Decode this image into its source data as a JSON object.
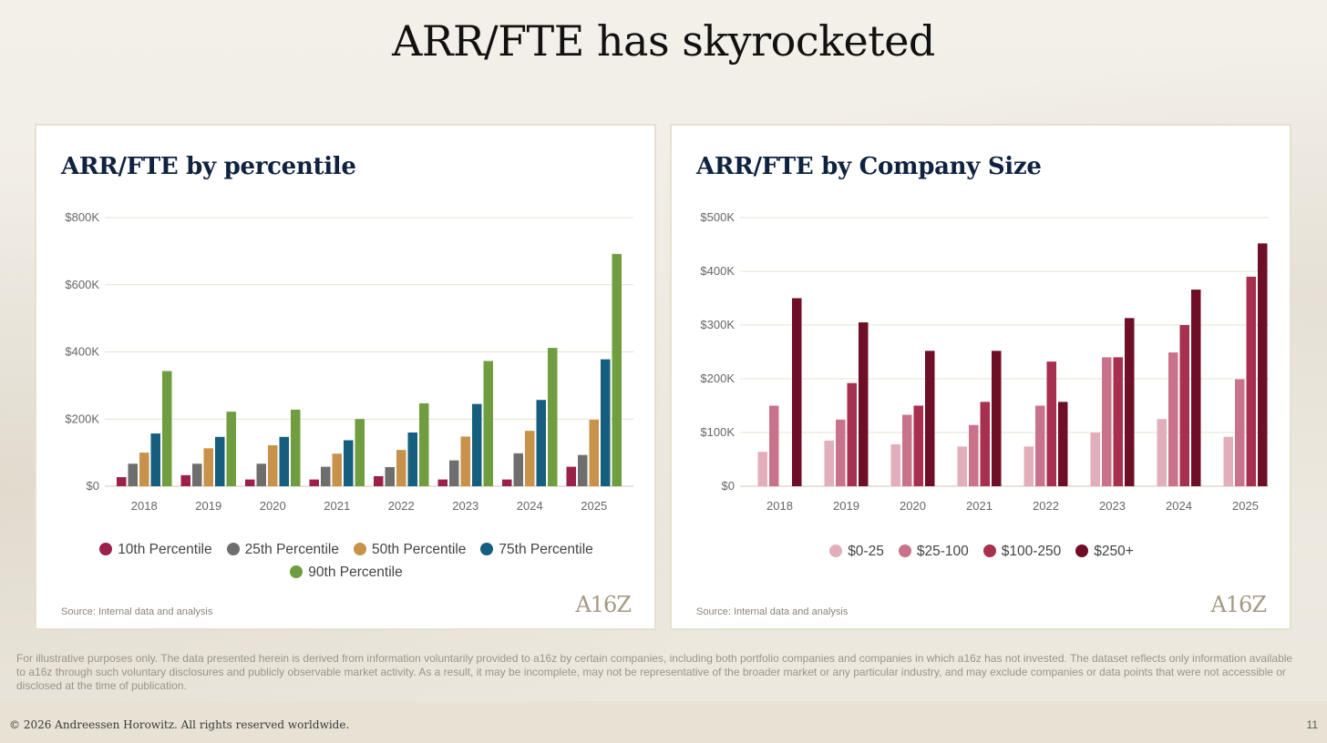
{
  "page": {
    "title": "ARR/FTE has skyrocketed",
    "disclaimer": "For illustrative purposes only. The data presented herein is derived from information voluntarily provided to a16z by certain companies, including both portfolio companies and companies in which a16z has not invested. The dataset reflects only information available to a16z through such voluntary disclosures and publicly observable market activity. As a result, it may be incomplete, may not be representative of the broader market or any particular industry, and may exclude companies or data points that were not accessible or disclosed at the time of publication.",
    "copyright": "© 2026 Andreessen Horowitz. All rights reserved worldwide.",
    "page_number": "11"
  },
  "panels": {
    "left": {
      "source": "Source: Internal data and analysis",
      "logo": "A16Z"
    },
    "right": {
      "source": "Source: Internal data and analysis",
      "logo": "A16Z"
    }
  },
  "chart_data": [
    {
      "type": "bar",
      "title": "ARR/FTE by percentile",
      "xlabel": "",
      "ylabel": "",
      "ylim": [
        0,
        800
      ],
      "unit": "K",
      "y_ticks": [
        {
          "value": 0,
          "label": "$0"
        },
        {
          "value": 200,
          "label": "$200K"
        },
        {
          "value": 400,
          "label": "$400K"
        },
        {
          "value": 600,
          "label": "$600K"
        },
        {
          "value": 800,
          "label": "$800K"
        }
      ],
      "categories": [
        "2018",
        "2019",
        "2020",
        "2021",
        "2022",
        "2023",
        "2024",
        "2025"
      ],
      "series": [
        {
          "name": "10th Percentile",
          "color": "#9c2148",
          "values": [
            27,
            33,
            20,
            20,
            30,
            20,
            20,
            58
          ]
        },
        {
          "name": "25th Percentile",
          "color": "#6e6e6e",
          "values": [
            67,
            67,
            67,
            58,
            57,
            77,
            98,
            93
          ]
        },
        {
          "name": "50th Percentile",
          "color": "#c8924a",
          "values": [
            100,
            113,
            122,
            97,
            108,
            148,
            165,
            198
          ]
        },
        {
          "name": "75th Percentile",
          "color": "#155e7e",
          "values": [
            157,
            147,
            147,
            137,
            160,
            245,
            257,
            378
          ]
        },
        {
          "name": "90th Percentile",
          "color": "#6f9d3f",
          "values": [
            343,
            222,
            228,
            200,
            247,
            373,
            412,
            692
          ]
        }
      ],
      "legend_position": "bottom"
    },
    {
      "type": "bar",
      "title": "ARR/FTE by Company Size",
      "xlabel": "",
      "ylabel": "",
      "ylim": [
        0,
        500
      ],
      "unit": "K",
      "y_ticks": [
        {
          "value": 0,
          "label": "$0"
        },
        {
          "value": 100,
          "label": "$100K"
        },
        {
          "value": 200,
          "label": "$200K"
        },
        {
          "value": 300,
          "label": "$300K"
        },
        {
          "value": 400,
          "label": "$400K"
        },
        {
          "value": 500,
          "label": "$500K"
        }
      ],
      "categories": [
        "2018",
        "2019",
        "2020",
        "2021",
        "2022",
        "2023",
        "2024",
        "2025"
      ],
      "series": [
        {
          "name": "$0-25",
          "color": "#e3aebb",
          "values": [
            64,
            85,
            78,
            74,
            74,
            100,
            125,
            92
          ]
        },
        {
          "name": "$25-100",
          "color": "#c9728c",
          "values": [
            150,
            124,
            133,
            114,
            150,
            240,
            249,
            199
          ]
        },
        {
          "name": "$100-250",
          "color": "#a6304e",
          "values": [
            0,
            192,
            150,
            157,
            232,
            240,
            300,
            390
          ]
        },
        {
          "name": "$250+",
          "color": "#6f0e27",
          "values": [
            350,
            305,
            252,
            252,
            157,
            313,
            366,
            452
          ]
        }
      ],
      "legend_position": "bottom"
    }
  ]
}
